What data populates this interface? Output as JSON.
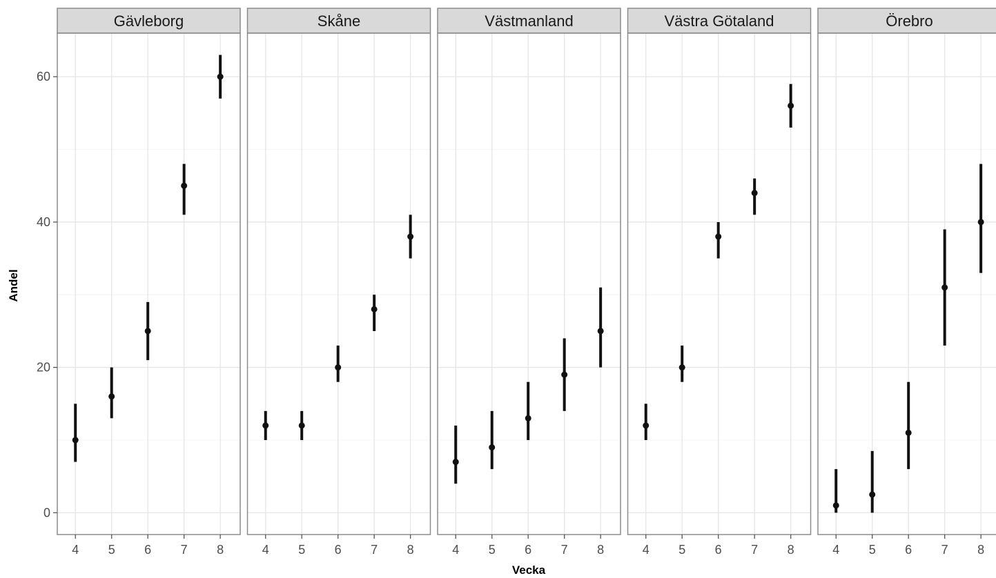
{
  "chart_data": {
    "type": "scatter",
    "subtype": "faceted point-range (error bars)",
    "xlabel": "Vecka",
    "ylabel": "Andel",
    "x_ticks": [
      4,
      5,
      6,
      7,
      8
    ],
    "y_ticks": [
      0,
      20,
      40,
      60
    ],
    "ylim": [
      -3,
      66
    ],
    "xlim": [
      3.5,
      8.55
    ],
    "grid": true,
    "legend": "none",
    "colors": {
      "panel_border": "#8c8c8c",
      "strip_fill": "#d9d9d9",
      "grid_major": "#e6e6e6",
      "grid_minor": "#f4f4f4",
      "point": "#111111"
    },
    "facets": [
      {
        "name": "Gävleborg",
        "points": [
          {
            "x": 4,
            "y": 10,
            "lo": 7,
            "hi": 15
          },
          {
            "x": 5,
            "y": 16,
            "lo": 13,
            "hi": 20
          },
          {
            "x": 6,
            "y": 25,
            "lo": 21,
            "hi": 29
          },
          {
            "x": 7,
            "y": 45,
            "lo": 41,
            "hi": 48
          },
          {
            "x": 8,
            "y": 60,
            "lo": 57,
            "hi": 63
          }
        ]
      },
      {
        "name": "Skåne",
        "points": [
          {
            "x": 4,
            "y": 12,
            "lo": 10,
            "hi": 14
          },
          {
            "x": 5,
            "y": 12,
            "lo": 10,
            "hi": 14
          },
          {
            "x": 6,
            "y": 20,
            "lo": 18,
            "hi": 23
          },
          {
            "x": 7,
            "y": 28,
            "lo": 25,
            "hi": 30
          },
          {
            "x": 8,
            "y": 38,
            "lo": 35,
            "hi": 41
          }
        ]
      },
      {
        "name": "Västmanland",
        "points": [
          {
            "x": 4,
            "y": 7,
            "lo": 4,
            "hi": 12
          },
          {
            "x": 5,
            "y": 9,
            "lo": 6,
            "hi": 14
          },
          {
            "x": 6,
            "y": 13,
            "lo": 10,
            "hi": 18
          },
          {
            "x": 7,
            "y": 19,
            "lo": 14,
            "hi": 24
          },
          {
            "x": 8,
            "y": 25,
            "lo": 20,
            "hi": 31
          }
        ]
      },
      {
        "name": "Västra Götaland",
        "points": [
          {
            "x": 4,
            "y": 12,
            "lo": 10,
            "hi": 15
          },
          {
            "x": 5,
            "y": 20,
            "lo": 18,
            "hi": 23
          },
          {
            "x": 6,
            "y": 38,
            "lo": 35,
            "hi": 40
          },
          {
            "x": 7,
            "y": 44,
            "lo": 41,
            "hi": 46
          },
          {
            "x": 8,
            "y": 56,
            "lo": 53,
            "hi": 59
          }
        ]
      },
      {
        "name": "Örebro",
        "points": [
          {
            "x": 4,
            "y": 1,
            "lo": 0,
            "hi": 6
          },
          {
            "x": 5,
            "y": 2.5,
            "lo": 0,
            "hi": 8.5
          },
          {
            "x": 6,
            "y": 11,
            "lo": 6,
            "hi": 18
          },
          {
            "x": 7,
            "y": 31,
            "lo": 23,
            "hi": 39
          },
          {
            "x": 8,
            "y": 40,
            "lo": 33,
            "hi": 48
          }
        ]
      }
    ]
  }
}
